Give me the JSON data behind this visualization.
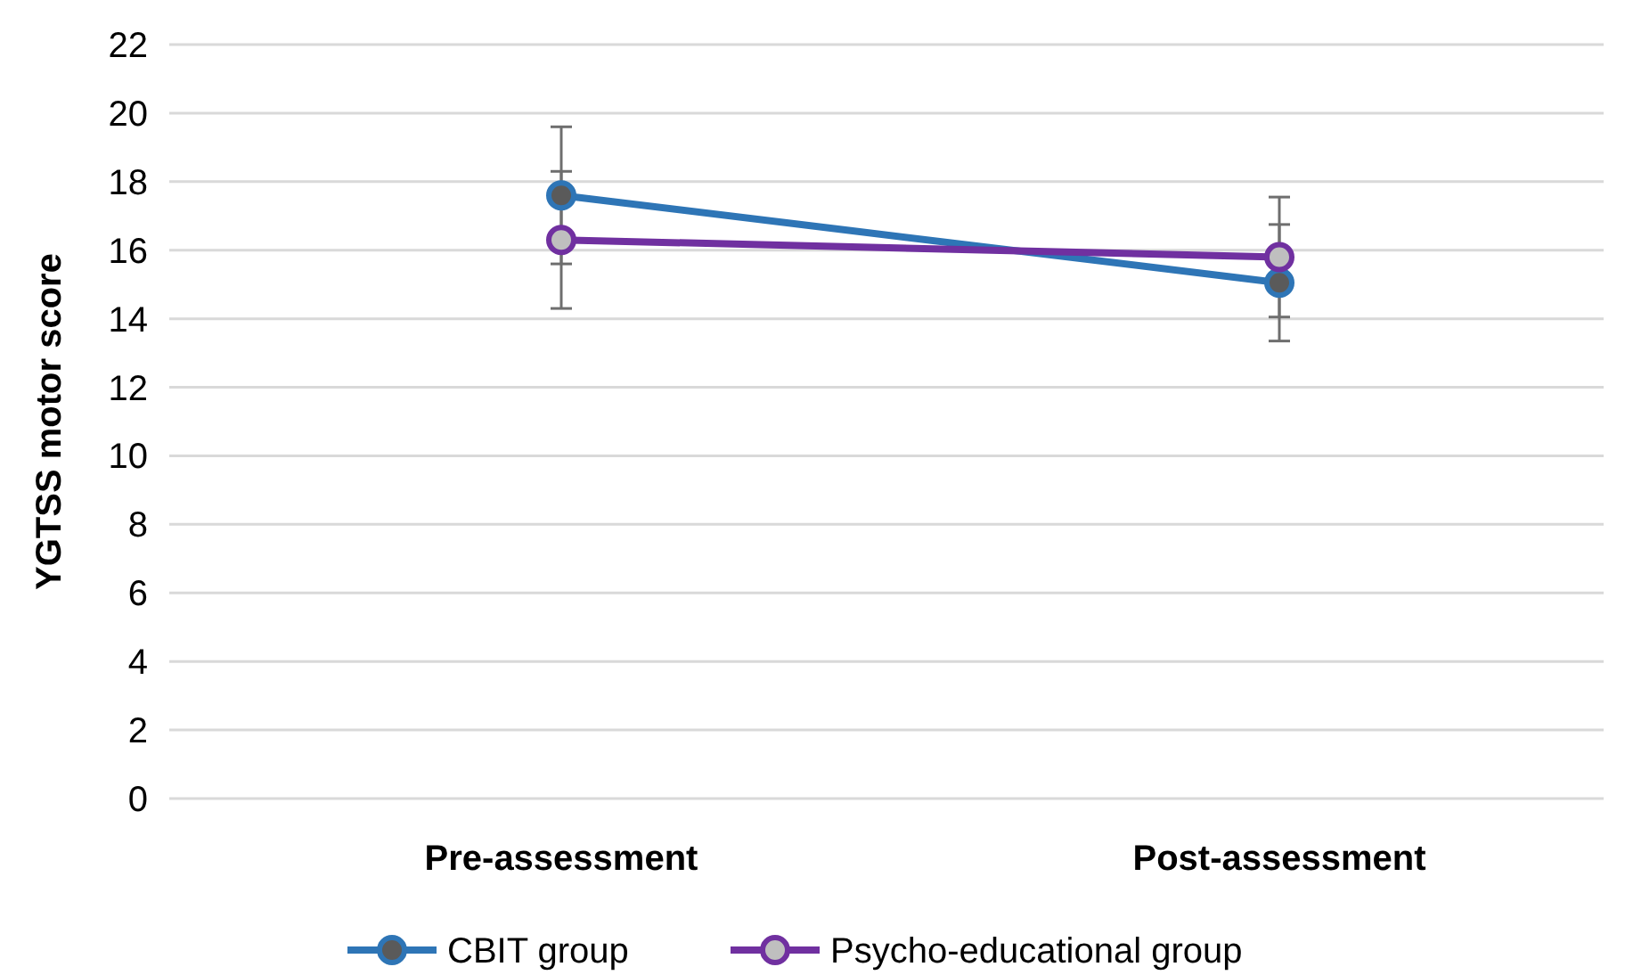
{
  "chart_data": {
    "type": "line",
    "ylabel": "YGTSS motor score",
    "categories": [
      "Pre-assessment",
      "Post-assessment"
    ],
    "series": [
      {
        "name": "CBIT group",
        "color": "#2e75b6",
        "values": [
          17.6,
          15.05
        ],
        "errors": [
          2.0,
          1.7
        ]
      },
      {
        "name": "Psycho-educational group",
        "color": "#7030a0",
        "values": [
          16.3,
          15.8
        ],
        "errors": [
          2.0,
          1.75
        ]
      }
    ],
    "ylim": [
      0,
      22
    ],
    "yticks": [
      0,
      2,
      4,
      6,
      8,
      10,
      12,
      14,
      16,
      18,
      20,
      22
    ],
    "grid": "y",
    "legend": "bottom",
    "marker": "circle",
    "line_style": "solid"
  }
}
